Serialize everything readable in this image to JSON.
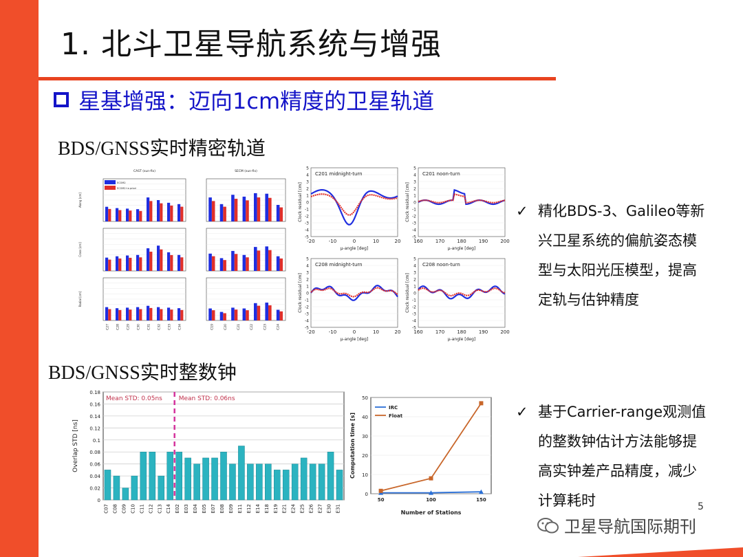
{
  "title": "1. 北斗卫星导航系统与增强",
  "subtitle": "星基增强：迈向1cm精度的卫星轨道",
  "section1": "BDS/GNSS实时精密轨道",
  "section2": "BDS/GNSS实时整数钟",
  "bullets1": [
    "精化BDS-3、Galileo等新",
    "兴卫星系统的偏航姿态模",
    "型与太阳光压模型，提高",
    "定轨与估钟精度"
  ],
  "bullets2": [
    "基于Carrier-range观测值",
    "的整数钟估计方法能够提",
    "高实钟差产品精度，减少",
    "计算耗时"
  ],
  "check": "✓",
  "footer": "卫星导航国际期刊",
  "page_number": "5",
  "colors": {
    "accent_red": "#f04e2a",
    "title_blue": "#1414c8",
    "bar_teal": "#2bb3c0",
    "blue": "#1f2ee0",
    "red": "#e0302a",
    "orange": "#c8662a"
  },
  "orbit_bar_chart": {
    "left_titles": [
      "CAST (sun-fix)",
      "SECM (sun-fix)"
    ],
    "legend": [
      "ECOM2",
      "ECOM2+a priori"
    ],
    "row_labels": [
      "Along [cm]",
      "Cross [cm]",
      "Radial [cm]"
    ],
    "left_categories": [
      "C27",
      "C28",
      "C29",
      "C30",
      "C31",
      "C32",
      "C33",
      "C34"
    ],
    "right_categories": [
      "C19",
      "C20",
      "C21",
      "C22",
      "C23",
      "C24"
    ],
    "yticks": [
      "0",
      "2",
      "4",
      "6",
      "8",
      "10",
      "12",
      "14",
      "16"
    ]
  },
  "clock_residual_panels": {
    "titles": [
      "C201 midnight-turn",
      "C201 noon-turn",
      "C208 midnight-turn",
      "C208 noon-turn"
    ],
    "ylabel": "Clock residual [cm]",
    "xlabel": "μ-angle [deg]",
    "yticks": [
      "5",
      "4",
      "3",
      "2",
      "1",
      "0",
      "-1",
      "-2",
      "-3",
      "-4",
      "-5"
    ],
    "xticks_left": [
      "-20",
      "-10",
      "0",
      "10",
      "20"
    ],
    "xticks_right": [
      "160",
      "170",
      "180",
      "190",
      "200"
    ]
  },
  "chart_data": [
    {
      "type": "bar",
      "title": "",
      "ylabel": "Overlap STD [ns]",
      "ylim": [
        0,
        0.18
      ],
      "yticks": [
        "0",
        "0.02",
        "0.04",
        "0.06",
        "0.08",
        "0.1",
        "0.12",
        "0.14",
        "0.16",
        "0.18"
      ],
      "categories": [
        "C07",
        "C08",
        "C09",
        "C10",
        "C11",
        "C12",
        "C13",
        "C14",
        "E02",
        "E03",
        "E04",
        "E05",
        "E07",
        "E08",
        "E09",
        "E11",
        "E12",
        "E14",
        "E18",
        "E19",
        "E21",
        "E24",
        "E25",
        "E26",
        "E27",
        "E30",
        "E31"
      ],
      "values": [
        0.05,
        0.04,
        0.02,
        0.04,
        0.08,
        0.08,
        0.04,
        0.08,
        0.08,
        0.07,
        0.06,
        0.07,
        0.07,
        0.08,
        0.06,
        0.09,
        0.06,
        0.06,
        0.06,
        0.05,
        0.05,
        0.06,
        0.07,
        0.06,
        0.06,
        0.08,
        0.05
      ],
      "annotations": [
        "Mean STD: 0.05ns",
        "Mean STD: 0.06ns"
      ]
    },
    {
      "type": "line",
      "xlabel": "Number of Stations",
      "ylabel": "Computation time [s]",
      "x": [
        50,
        100,
        150
      ],
      "xticks": [
        "50",
        "100",
        "150"
      ],
      "yticks": [
        "0",
        "10",
        "20",
        "30",
        "40",
        "50"
      ],
      "ylim": [
        0,
        50
      ],
      "series": [
        {
          "name": "IRC",
          "values": [
            0.5,
            0.5,
            1.0
          ],
          "color": "#2a6fd6"
        },
        {
          "name": "Float",
          "values": [
            1.5,
            8,
            47
          ],
          "color": "#c8662a"
        }
      ]
    }
  ]
}
